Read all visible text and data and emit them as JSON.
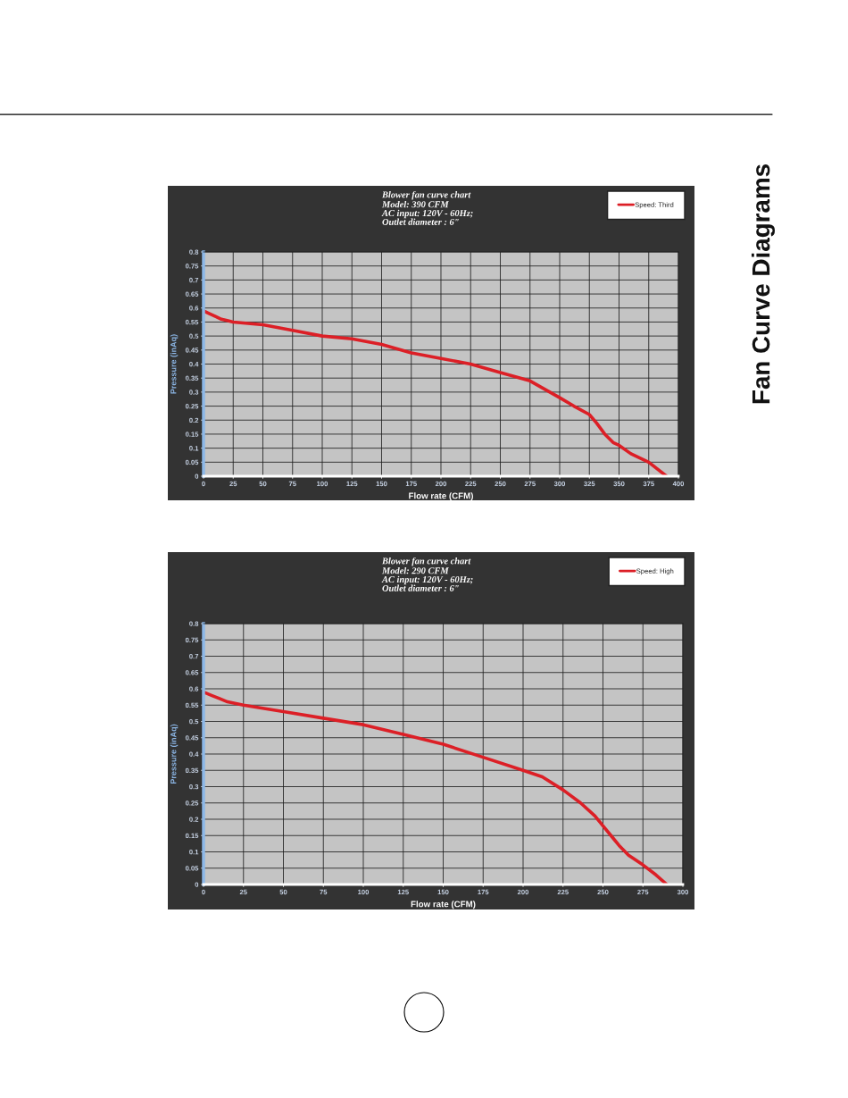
{
  "chart_data": [
    {
      "type": "line",
      "title": "Blower fan curve chart",
      "subtitle": "Model: 390 CFM\nAC input: 120V - 60Hz;\nOutlet diameter : 6\"",
      "xlabel": "Flow rate (CFM)",
      "ylabel": "Pressure (inAq)",
      "annotations": [
        "Fan Curve Diagrams"
      ],
      "series": [
        {
          "name": "Speed: Third",
          "color": "#dc1f26",
          "x": [
            0,
            5,
            10,
            15,
            25,
            50,
            75,
            100,
            125,
            150,
            175,
            200,
            225,
            250,
            275,
            300,
            312,
            325,
            331,
            338,
            345,
            350,
            360,
            375,
            390
          ],
          "values": [
            0.59,
            0.58,
            0.57,
            0.56,
            0.55,
            0.54,
            0.52,
            0.5,
            0.49,
            0.47,
            0.44,
            0.42,
            0.4,
            0.37,
            0.34,
            0.28,
            0.25,
            0.22,
            0.19,
            0.15,
            0.12,
            0.11,
            0.08,
            0.05,
            0
          ]
        }
      ],
      "xlim": [
        0,
        400
      ],
      "xticks": [
        0,
        25,
        50,
        75,
        100,
        125,
        150,
        175,
        200,
        225,
        250,
        275,
        300,
        325,
        350,
        375,
        400
      ],
      "ylim": [
        0,
        0.8
      ],
      "yticks": [
        0,
        0.05,
        0.1,
        0.15,
        0.2,
        0.25,
        0.3,
        0.35,
        0.4,
        0.45,
        0.5,
        0.55,
        0.6,
        0.65,
        0.7,
        0.75,
        0.8
      ],
      "grid": true,
      "legend": "top right",
      "line_style": "solid"
    },
    {
      "type": "line",
      "title": "Blower fan curve chart",
      "subtitle": "Model: 290 CFM\nAC input: 120V - 60Hz;\nOutlet diameter : 6\"",
      "xlabel": "Flow rate (CFM)",
      "ylabel": "Pressure (inAq)",
      "series": [
        {
          "name": "Speed: High",
          "color": "#dc1f26",
          "x": [
            0,
            5,
            10,
            15,
            25,
            50,
            75,
            100,
            125,
            150,
            175,
            200,
            212,
            225,
            236,
            245,
            250,
            255,
            260,
            266,
            275,
            283,
            290
          ],
          "values": [
            0.59,
            0.58,
            0.57,
            0.56,
            0.55,
            0.53,
            0.51,
            0.49,
            0.46,
            0.43,
            0.39,
            0.35,
            0.33,
            0.29,
            0.25,
            0.21,
            0.18,
            0.15,
            0.12,
            0.09,
            0.06,
            0.03,
            0
          ]
        }
      ],
      "xlim": [
        0,
        300
      ],
      "xticks": [
        0,
        25,
        50,
        75,
        100,
        125,
        150,
        175,
        200,
        225,
        250,
        275,
        300
      ],
      "ylim": [
        0,
        0.8
      ],
      "yticks": [
        0,
        0.05,
        0.1,
        0.15,
        0.2,
        0.25,
        0.3,
        0.35,
        0.4,
        0.45,
        0.5,
        0.55,
        0.6,
        0.65,
        0.7,
        0.75,
        0.8
      ],
      "grid": true,
      "legend": "top right",
      "line_style": "solid"
    }
  ]
}
